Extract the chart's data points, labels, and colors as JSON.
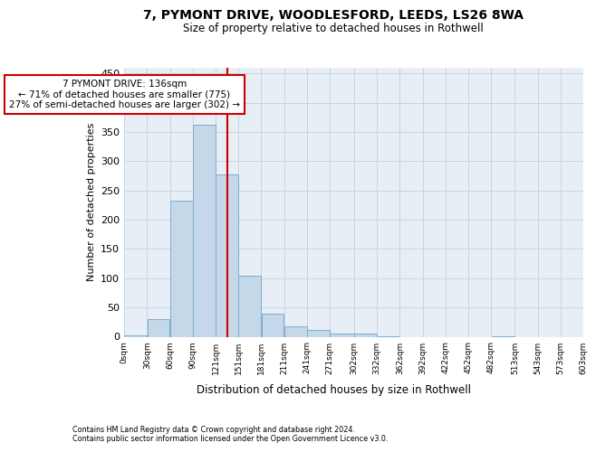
{
  "title_line1": "7, PYMONT DRIVE, WOODLESFORD, LEEDS, LS26 8WA",
  "title_line2": "Size of property relative to detached houses in Rothwell",
  "xlabel": "Distribution of detached houses by size in Rothwell",
  "ylabel": "Number of detached properties",
  "bar_edges": [
    0,
    30,
    60,
    90,
    120,
    150,
    180,
    210,
    240,
    270,
    302,
    332,
    362,
    392,
    422,
    452,
    482,
    513,
    543,
    573,
    603
  ],
  "bar_values": [
    2,
    30,
    233,
    363,
    278,
    105,
    40,
    18,
    12,
    6,
    5,
    1,
    0,
    0,
    0,
    0,
    1,
    0,
    0,
    0
  ],
  "bar_color": "#c5d8ea",
  "bar_edge_color": "#7aaece",
  "property_size": 136,
  "annotation_text": "7 PYMONT DRIVE: 136sqm\n← 71% of detached houses are smaller (775)\n27% of semi-detached houses are larger (302) →",
  "annotation_box_color": "#ffffff",
  "annotation_border_color": "#cc0000",
  "vline_color": "#cc0000",
  "ylim": [
    0,
    460
  ],
  "yticks": [
    0,
    50,
    100,
    150,
    200,
    250,
    300,
    350,
    400,
    450
  ],
  "grid_color": "#c8d4e4",
  "background_color": "#e8eef5",
  "footer_line1": "Contains HM Land Registry data © Crown copyright and database right 2024.",
  "footer_line2": "Contains public sector information licensed under the Open Government Licence v3.0.",
  "tick_labels": [
    "0sqm",
    "30sqm",
    "60sqm",
    "90sqm",
    "121sqm",
    "151sqm",
    "181sqm",
    "211sqm",
    "241sqm",
    "271sqm",
    "302sqm",
    "332sqm",
    "362sqm",
    "392sqm",
    "422sqm",
    "452sqm",
    "482sqm",
    "513sqm",
    "543sqm",
    "573sqm",
    "603sqm"
  ]
}
